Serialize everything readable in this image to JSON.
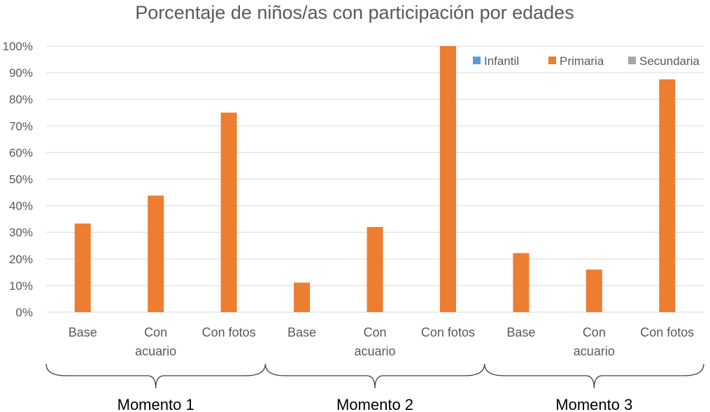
{
  "chart_data": {
    "type": "bar",
    "title": "Porcentaje de niños/as con participación por edades",
    "xlabel": "",
    "ylabel": "",
    "ylim": [
      0,
      1
    ],
    "y_ticks": [
      "0%",
      "10%",
      "20%",
      "30%",
      "40%",
      "50%",
      "60%",
      "70%",
      "80%",
      "90%",
      "100%"
    ],
    "grid": true,
    "legend_position": "top-right",
    "groups": [
      "Momento 1",
      "Momento 2",
      "Momento 3"
    ],
    "categories": [
      [
        "Base"
      ],
      [
        "Con",
        "acuario"
      ],
      [
        "Con fotos"
      ],
      [
        "Base"
      ],
      [
        "Con",
        "acuario"
      ],
      [
        "Con fotos"
      ],
      [
        "Base"
      ],
      [
        "Con",
        "acuario"
      ],
      [
        "Con fotos"
      ]
    ],
    "series": [
      {
        "name": "Infantil",
        "color": "#5b9bd5",
        "values": [
          0,
          0,
          0,
          0,
          0,
          0,
          0,
          0,
          0
        ]
      },
      {
        "name": "Primaria",
        "color": "#ed7d31",
        "values": [
          0.333,
          0.438,
          0.75,
          0.111,
          0.32,
          1.0,
          0.222,
          0.16,
          0.875
        ]
      },
      {
        "name": "Secundaria",
        "color": "#a5a5a5",
        "values": [
          0,
          0,
          0,
          0,
          0,
          0,
          0,
          0,
          0
        ]
      }
    ]
  }
}
